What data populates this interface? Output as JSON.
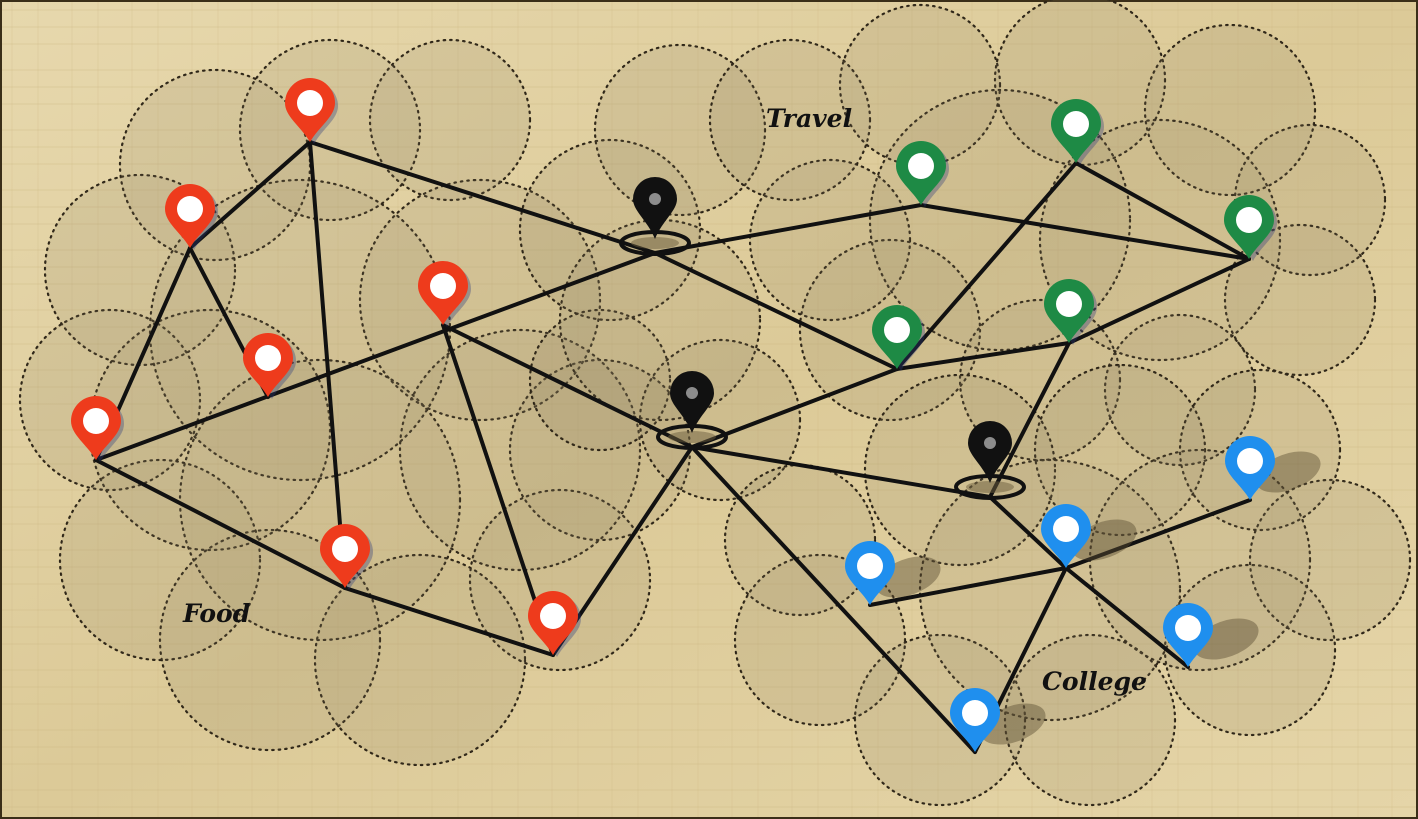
{
  "regions": [
    {
      "id": "food",
      "label": "Food"
    },
    {
      "id": "travel",
      "label": "Travel"
    },
    {
      "id": "college",
      "label": "College"
    }
  ],
  "colors": {
    "food": "#ee3b1c",
    "travel": "#1e8a45",
    "college": "#1f8fee",
    "hub": "#111111",
    "edge": "#111111",
    "background": "#e3d3a6"
  },
  "icons": {
    "place": "map-pin-icon",
    "hub": "hub-pin-icon"
  }
}
